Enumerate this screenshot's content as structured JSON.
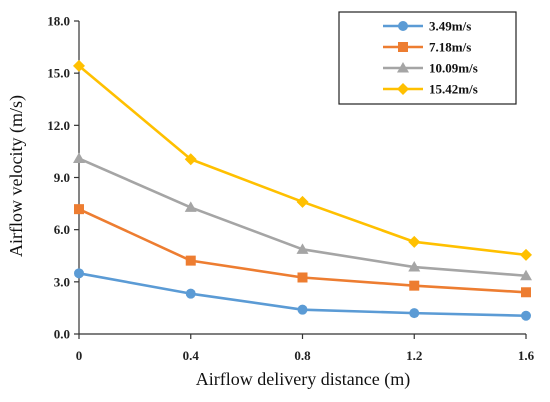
{
  "chart_data": {
    "type": "line",
    "title": "",
    "xlabel": "Airflow delivery distance (m)",
    "ylabel": "Airflow velocity (m/s)",
    "x": [
      0,
      0.4,
      0.8,
      1.2,
      1.6
    ],
    "x_tick_labels": [
      "0",
      "0.4",
      "0.8",
      "1.2",
      "1.6"
    ],
    "xlim": [
      0,
      1.6
    ],
    "ylim": [
      0,
      18
    ],
    "y_ticks": [
      0,
      3,
      6,
      9,
      12,
      15,
      18
    ],
    "y_tick_labels": [
      "0.0",
      "3.0",
      "6.0",
      "9.0",
      "12.0",
      "15.0",
      "18.0"
    ],
    "grid": false,
    "legend_position": "top-right",
    "series": [
      {
        "name": "3.49m/s",
        "color": "#5b9bd5",
        "marker": "circle",
        "values": [
          3.49,
          2.32,
          1.4,
          1.2,
          1.05
        ]
      },
      {
        "name": "7.18m/s",
        "color": "#ed7d31",
        "marker": "square",
        "values": [
          7.18,
          4.22,
          3.25,
          2.78,
          2.4
        ]
      },
      {
        "name": "10.09m/s",
        "color": "#a5a5a5",
        "marker": "triangle",
        "values": [
          10.09,
          7.28,
          4.87,
          3.85,
          3.35
        ]
      },
      {
        "name": "15.42m/s",
        "color": "#ffc000",
        "marker": "diamond",
        "values": [
          15.42,
          10.05,
          7.6,
          5.3,
          4.55
        ]
      }
    ]
  }
}
